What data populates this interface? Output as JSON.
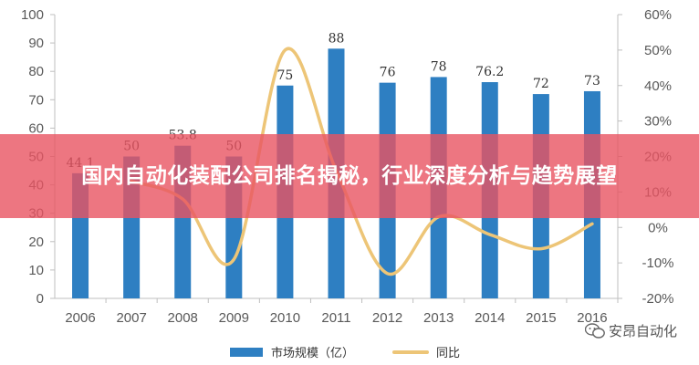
{
  "chart_data": {
    "type": "bar+line",
    "categories": [
      "2006",
      "2007",
      "2008",
      "2009",
      "2010",
      "2011",
      "2012",
      "2013",
      "2014",
      "2015",
      "2016"
    ],
    "series": [
      {
        "name": "市场规模（亿）",
        "type": "bar",
        "axis": "left",
        "values": [
          44.1,
          50,
          53.8,
          50,
          75,
          88,
          76,
          78,
          76.2,
          72,
          73
        ],
        "labels": [
          "44.1",
          "50",
          "53.8",
          "50",
          "75",
          "88",
          "76",
          "78",
          "76.2",
          "72",
          "73"
        ]
      },
      {
        "name": "同比",
        "type": "line",
        "axis": "right",
        "values": [
          null,
          13,
          8,
          -9,
          50,
          16,
          -13,
          3,
          -2,
          -6,
          1
        ]
      }
    ],
    "ylim_left": [
      0,
      100
    ],
    "yticks_left": [
      "0",
      "10",
      "20",
      "30",
      "40",
      "50",
      "60",
      "70",
      "80",
      "90",
      "100"
    ],
    "ylim_right": [
      -20,
      60
    ],
    "yticks_right": [
      "-20%",
      "-10%",
      "0%",
      "10%",
      "20%",
      "30%",
      "40%",
      "50%",
      "60%"
    ],
    "legend_position": "bottom",
    "grid": false,
    "colors": {
      "bar": "#2e7fc2",
      "line": "#edc577"
    }
  },
  "banner": {
    "title": "国内自动化装配公司排名揭秘，行业深度分析与趋势展望"
  },
  "watermark": {
    "text": "安昂自动化",
    "icon": "wechat-icon"
  }
}
